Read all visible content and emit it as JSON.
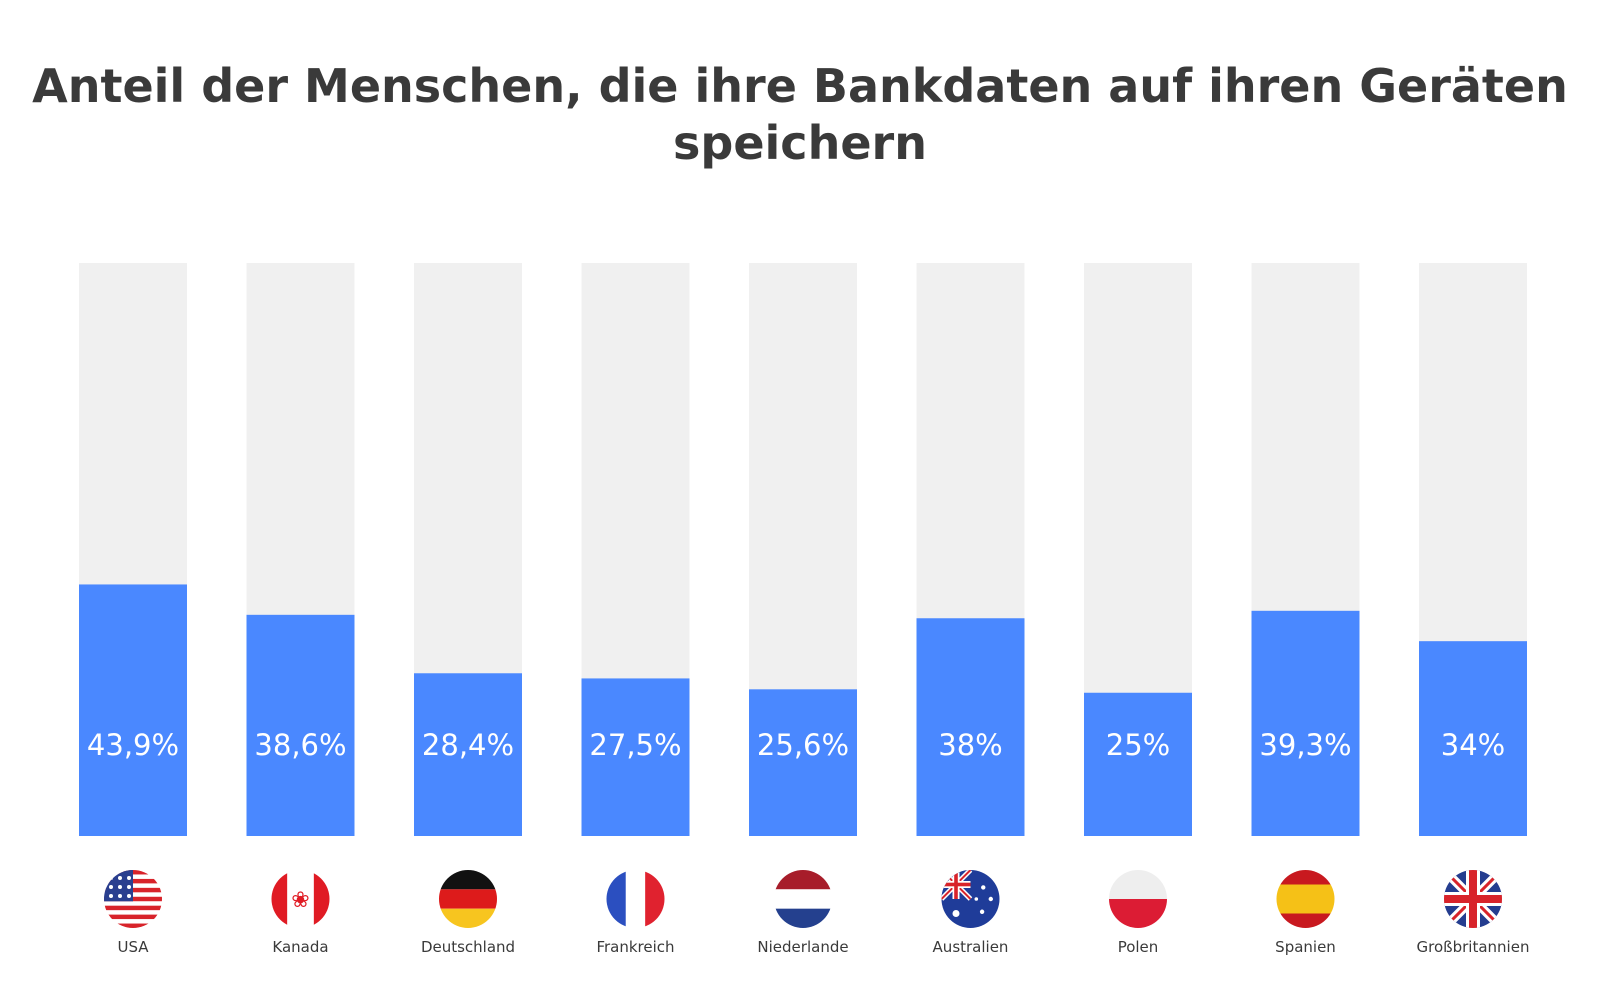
{
  "chart_data": {
    "type": "bar",
    "title_lines": [
      "Anteil der Menschen, die ihre Bankdaten auf ihren Geräten",
      "speichern"
    ],
    "categories": [
      "USA",
      "Kanada",
      "Deutschland",
      "Frankreich",
      "Niederlande",
      "Australien",
      "Polen",
      "Spanien",
      "Großbritannien"
    ],
    "values": [
      43.9,
      38.6,
      28.4,
      27.5,
      25.6,
      38,
      25,
      39.3,
      34
    ],
    "value_labels": [
      "43,9%",
      "38,6%",
      "28,4%",
      "27,5%",
      "25,6%",
      "38%",
      "25%",
      "39,3%",
      "34%"
    ],
    "flags": [
      "us-flag-icon",
      "canada-flag-icon",
      "germany-flag-icon",
      "france-flag-icon",
      "netherlands-flag-icon",
      "australia-flag-icon",
      "poland-flag-icon",
      "spain-flag-icon",
      "uk-flag-icon"
    ],
    "ylim": [
      0,
      100
    ],
    "grid": false,
    "colors": {
      "bar": "#4a88ff",
      "track": "#f0f0f0",
      "value_text": "#ffffff",
      "label_text": "#3a3a3a",
      "title_text": "#3a3a3a"
    }
  }
}
